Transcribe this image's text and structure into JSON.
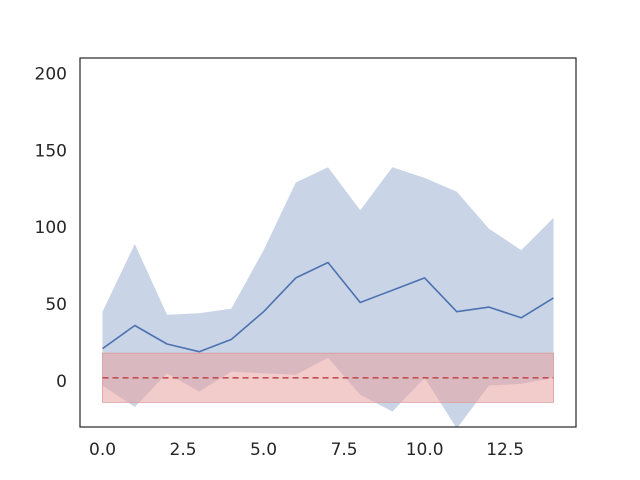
{
  "chart_data": {
    "type": "line",
    "title": "",
    "xlabel": "",
    "ylabel": "",
    "xlim": [
      -0.7,
      14.7
    ],
    "ylim": [
      -30,
      210
    ],
    "x_ticks": [
      0.0,
      2.5,
      5.0,
      7.5,
      10.0,
      12.5
    ],
    "x_tick_labels": [
      "0.0",
      "2.5",
      "5.0",
      "7.5",
      "10.0",
      "12.5"
    ],
    "y_ticks": [
      0,
      50,
      100,
      150,
      200
    ],
    "y_tick_labels": [
      "0",
      "50",
      "100",
      "150",
      "200"
    ],
    "grid": false,
    "x": [
      0,
      1,
      2,
      3,
      4,
      5,
      6,
      7,
      8,
      9,
      10,
      11,
      12,
      13,
      14
    ],
    "series": [
      {
        "kind": "line",
        "color": "#4c72b0",
        "values": [
          21,
          36,
          24,
          19,
          27,
          45,
          67,
          77,
          51,
          59,
          67,
          45,
          48,
          41,
          54
        ]
      },
      {
        "kind": "band",
        "color": "#4c72b0",
        "opacity": 0.3,
        "upper": [
          45,
          89,
          43,
          44,
          47,
          85,
          129,
          139,
          111,
          139,
          132,
          123,
          99,
          85,
          106
        ],
        "lower": [
          -3,
          -17,
          5,
          -7,
          6,
          5,
          4,
          15,
          -9,
          -20,
          2,
          -31,
          -3,
          -2,
          2
        ]
      },
      {
        "kind": "band",
        "color": "#dd8452",
        "fill": "#e8a0a0",
        "opacity": 0.55,
        "upper": [
          18,
          18,
          18,
          18,
          18,
          18,
          18,
          18,
          18,
          18,
          18,
          18,
          18,
          18,
          18
        ],
        "lower": [
          -14,
          -14,
          -14,
          -14,
          -14,
          -14,
          -14,
          -14,
          -14,
          -14,
          -14,
          -14,
          -14,
          -14,
          -14
        ]
      },
      {
        "kind": "hline",
        "style": "dashed",
        "color": "#c44e52",
        "value": 2,
        "x_range": [
          0,
          14
        ]
      }
    ]
  },
  "colors": {
    "axes_edge": "#262626",
    "tick_text": "#262626",
    "background": "#ffffff"
  }
}
